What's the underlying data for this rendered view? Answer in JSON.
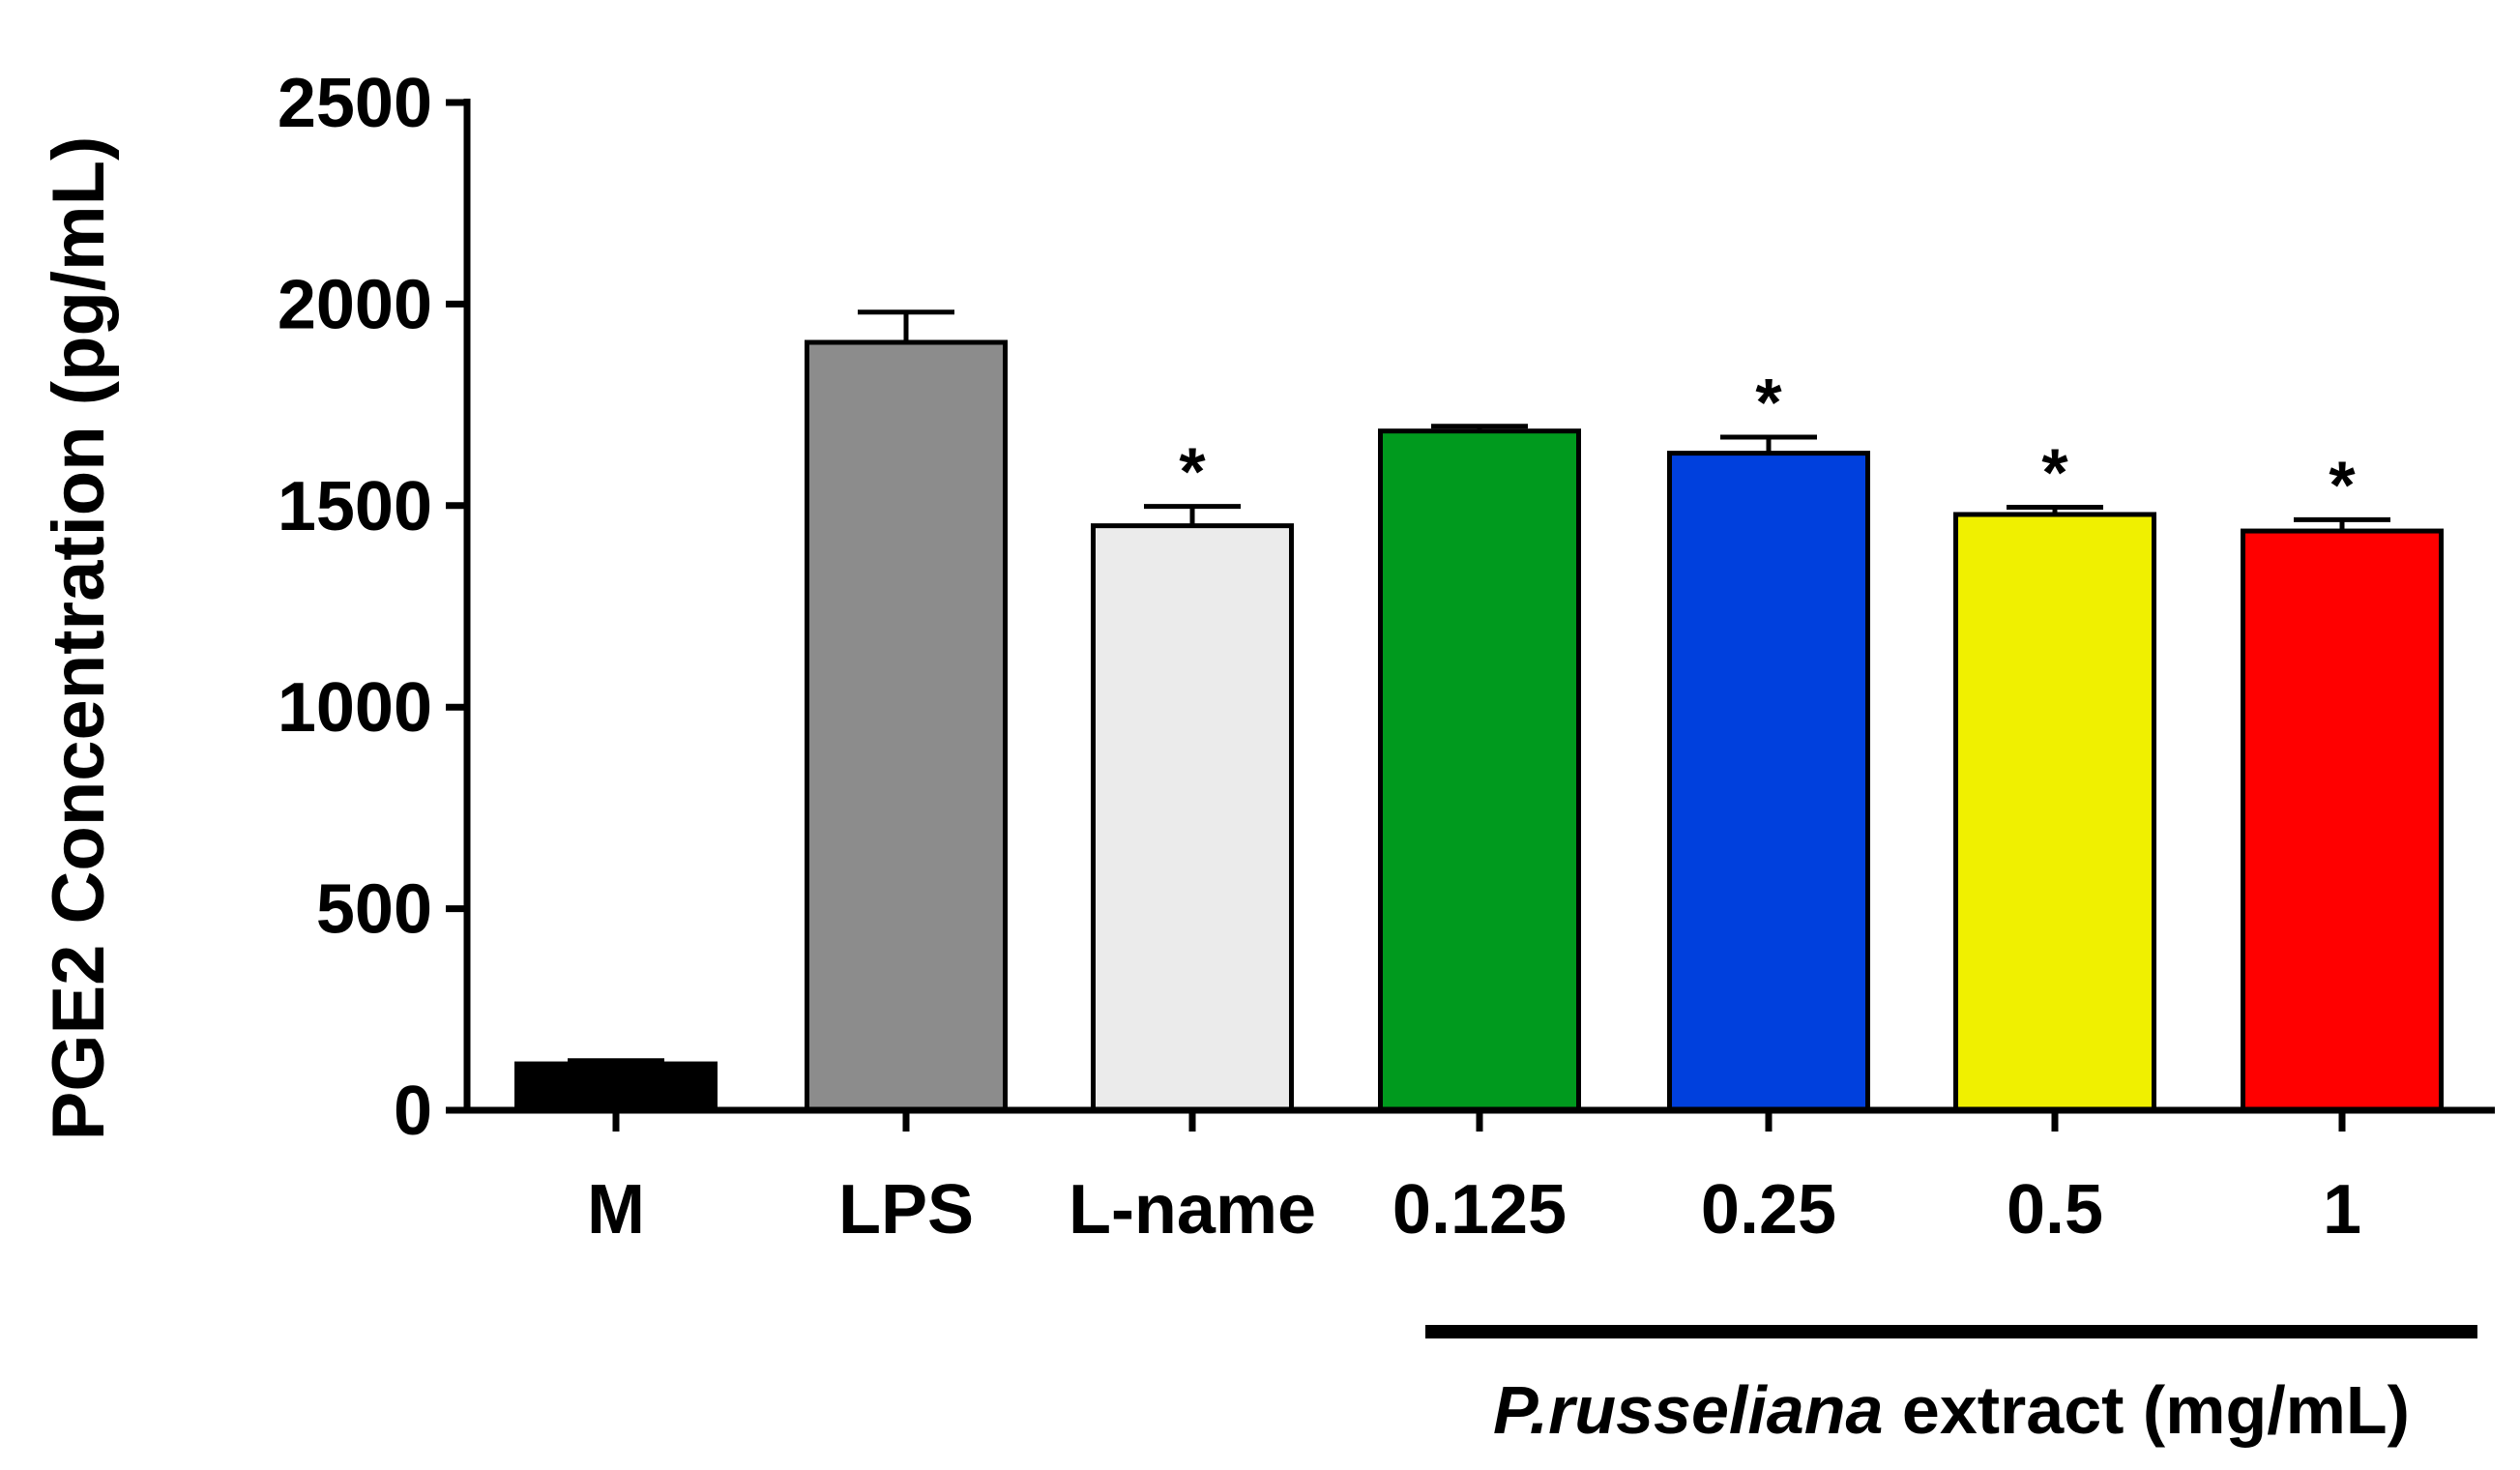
{
  "chart_data": {
    "type": "bar",
    "categories": [
      "M",
      "LPS",
      "L-name",
      "0.125",
      "0.25",
      "0.5",
      "1"
    ],
    "values": [
      115,
      1905,
      1450,
      1685,
      1630,
      1478,
      1437
    ],
    "errors": [
      8,
      75,
      48,
      12,
      40,
      18,
      28
    ],
    "significance": [
      "",
      "",
      "*",
      "",
      "*",
      "*",
      "*"
    ],
    "colors": [
      "#000000",
      "#8c8c8c",
      "#ebebeb",
      "#009a1e",
      "#0040dd",
      "#f0f000",
      "#ff0000"
    ],
    "ylabel": "PGE2 Concentration (pg/mL)",
    "ylim": [
      0,
      2500
    ],
    "yticks": [
      0,
      500,
      1000,
      1500,
      2000,
      2500
    ],
    "ytick_labels": [
      "0",
      "500",
      "1000",
      "1500",
      "2000",
      "2500"
    ],
    "grid": false,
    "group_label": {
      "italic_part": "P.russeliana",
      "rest": " extract (mg/mL)",
      "spans_categories": [
        "0.125",
        "0.25",
        "0.5",
        "1"
      ]
    }
  }
}
